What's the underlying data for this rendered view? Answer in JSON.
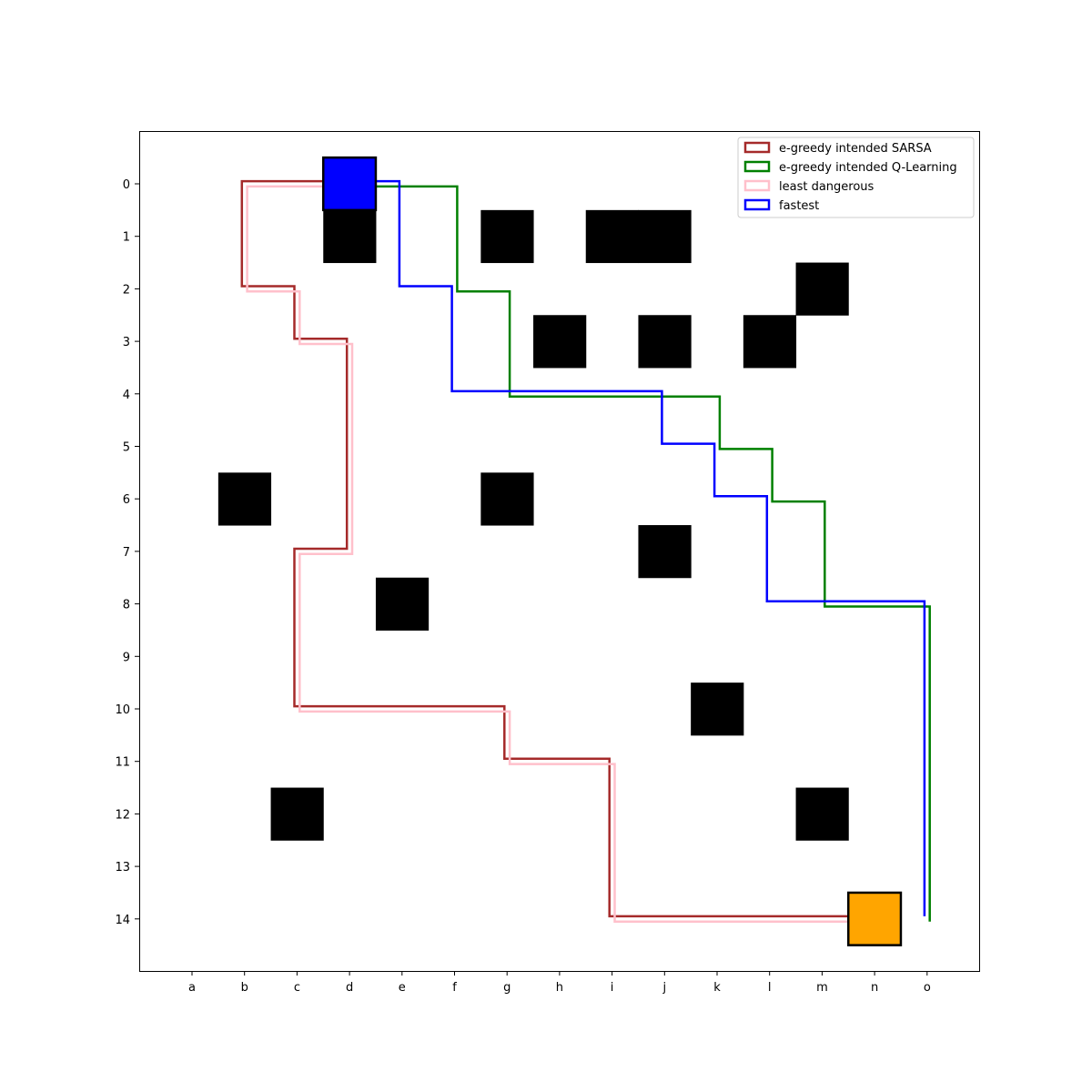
{
  "chart_data": {
    "type": "grid-paths",
    "title": "",
    "xlabel": "",
    "ylabel": "",
    "x_ticks": [
      "a",
      "b",
      "c",
      "d",
      "e",
      "f",
      "g",
      "h",
      "i",
      "j",
      "k",
      "l",
      "m",
      "n",
      "o"
    ],
    "y_ticks": [
      "0",
      "1",
      "2",
      "3",
      "4",
      "5",
      "6",
      "7",
      "8",
      "9",
      "10",
      "11",
      "12",
      "13",
      "14"
    ],
    "xlim": [
      -1,
      15
    ],
    "ylim": [
      15,
      -1
    ],
    "grid": false,
    "legend_position": "top-right",
    "obstacle_color": "#000000",
    "obstacles": [
      {
        "col": 3,
        "row": 1
      },
      {
        "col": 6,
        "row": 1
      },
      {
        "col": 8,
        "row": 1
      },
      {
        "col": 9,
        "row": 1
      },
      {
        "col": 12,
        "row": 2
      },
      {
        "col": 7,
        "row": 3
      },
      {
        "col": 9,
        "row": 3
      },
      {
        "col": 11,
        "row": 3
      },
      {
        "col": 1,
        "row": 6
      },
      {
        "col": 6,
        "row": 6
      },
      {
        "col": 9,
        "row": 7
      },
      {
        "col": 4,
        "row": 8
      },
      {
        "col": 10,
        "row": 10
      },
      {
        "col": 2,
        "row": 12
      },
      {
        "col": 12,
        "row": 12
      }
    ],
    "start": {
      "col": 3,
      "row": 0,
      "color": "#0000ff"
    },
    "goal": {
      "col": 13,
      "row": 14,
      "color": "#ffa500"
    },
    "series": [
      {
        "name": "e-greedy intended SARSA",
        "color": "#a52a2a",
        "offset": -0.05,
        "points": [
          [
            3,
            0
          ],
          [
            1,
            0
          ],
          [
            1,
            2
          ],
          [
            2,
            2
          ],
          [
            2,
            3
          ],
          [
            3,
            3
          ],
          [
            3,
            7
          ],
          [
            2,
            7
          ],
          [
            2,
            10
          ],
          [
            6,
            10
          ],
          [
            6,
            11
          ],
          [
            8,
            11
          ],
          [
            8,
            14
          ],
          [
            13,
            14
          ]
        ]
      },
      {
        "name": "e-greedy intended Q-Learning",
        "color": "#008000",
        "offset": 0.05,
        "points": [
          [
            3,
            0
          ],
          [
            5,
            0
          ],
          [
            5,
            2
          ],
          [
            6,
            2
          ],
          [
            6,
            4
          ],
          [
            10,
            4
          ],
          [
            10,
            5
          ],
          [
            11,
            5
          ],
          [
            11,
            6
          ],
          [
            12,
            6
          ],
          [
            12,
            8
          ],
          [
            14,
            8
          ],
          [
            14,
            14
          ]
        ]
      },
      {
        "name": "least dangerous",
        "color": "#ffc0cb",
        "offset": 0.05,
        "points": [
          [
            3,
            0
          ],
          [
            1,
            0
          ],
          [
            1,
            2
          ],
          [
            2,
            2
          ],
          [
            2,
            3
          ],
          [
            3,
            3
          ],
          [
            3,
            7
          ],
          [
            2,
            7
          ],
          [
            2,
            10
          ],
          [
            6,
            10
          ],
          [
            6,
            11
          ],
          [
            8,
            11
          ],
          [
            8,
            14
          ],
          [
            13,
            14
          ]
        ]
      },
      {
        "name": "fastest",
        "color": "#0000ff",
        "offset": -0.05,
        "points": [
          [
            3,
            0
          ],
          [
            4,
            0
          ],
          [
            4,
            2
          ],
          [
            5,
            2
          ],
          [
            5,
            4
          ],
          [
            9,
            4
          ],
          [
            9,
            5
          ],
          [
            10,
            5
          ],
          [
            10,
            6
          ],
          [
            11,
            6
          ],
          [
            11,
            8
          ],
          [
            14,
            8
          ],
          [
            14,
            14
          ]
        ]
      }
    ]
  }
}
